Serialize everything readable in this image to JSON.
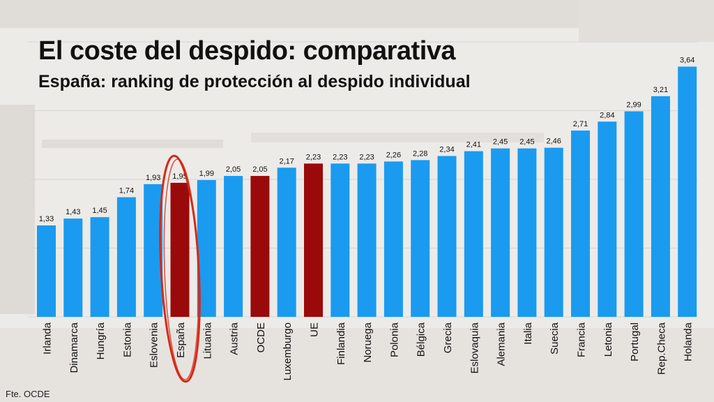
{
  "title": "El coste del despido: comparativa",
  "subtitle": "España: ranking de protección al despido individual",
  "source": "Fte. OCDE",
  "colors": {
    "bar": "#1a9bf0",
    "highlight": "#9b0a0a",
    "circle": "#d42a18",
    "grid": "#d6d6d6"
  },
  "chart_data": {
    "type": "bar",
    "title": "El coste del despido: comparativa",
    "subtitle": "España: ranking de protección al despido individual",
    "xlabel": "",
    "ylabel": "",
    "ylim": [
      0,
      4
    ],
    "grid": true,
    "categories": [
      "Irlanda",
      "Dinamarca",
      "Hungría",
      "Estonia",
      "Eslovenia",
      "España",
      "Lituania",
      "Austria",
      "OCDE",
      "Luxemburgo",
      "UE",
      "Finlandia",
      "Noruega",
      "Polonia",
      "Bélgica",
      "Grecia",
      "Eslovaquia",
      "Alemania",
      "Italia",
      "Suecia",
      "Francia",
      "Letonia",
      "Portugal",
      "Rep.Checa",
      "Holanda"
    ],
    "values": [
      1.33,
      1.43,
      1.45,
      1.74,
      1.93,
      1.95,
      1.99,
      2.05,
      2.05,
      2.17,
      2.23,
      2.23,
      2.23,
      2.26,
      2.28,
      2.34,
      2.41,
      2.45,
      2.45,
      2.46,
      2.71,
      2.84,
      2.99,
      3.21,
      3.64
    ],
    "value_labels": [
      "1,33",
      "1,43",
      "1,45",
      "1,74",
      "1,93",
      "1,95",
      "1,99",
      "2,05",
      "2,05",
      "2,17",
      "2,23",
      "2,23",
      "2,23",
      "2,26",
      "2,28",
      "2,34",
      "2,41",
      "2,45",
      "2,45",
      "2,46",
      "2,71",
      "2,84",
      "2,99",
      "3,21",
      "3,64"
    ],
    "highlighted": [
      "España",
      "OCDE",
      "UE"
    ],
    "circled": "España"
  }
}
